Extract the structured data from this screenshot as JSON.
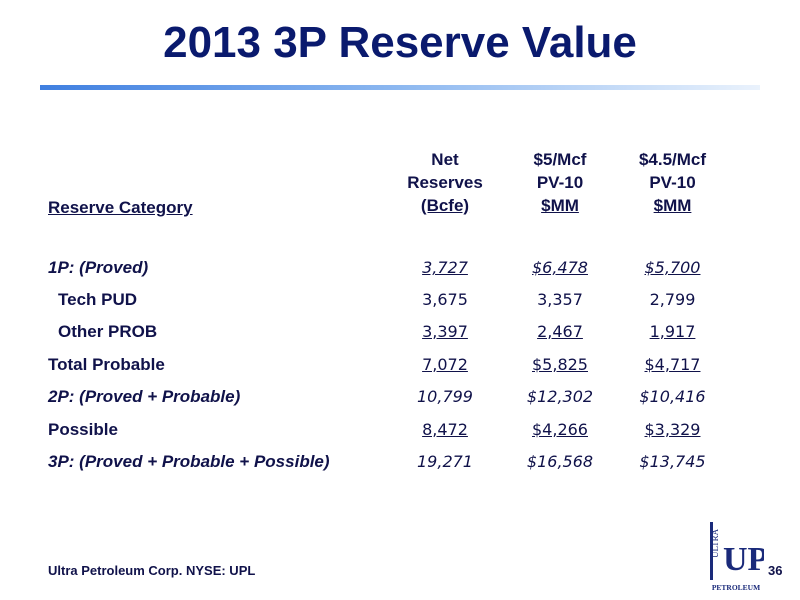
{
  "title": "2013 3P Reserve Value",
  "table": {
    "headers": {
      "category": "Reserve Category",
      "col1": [
        "Net",
        "Reserves",
        "(Bcfe)"
      ],
      "col2": [
        "$5/Mcf",
        "PV-10",
        "$MM"
      ],
      "col3": [
        "$4.5/Mcf",
        "PV-10",
        "$MM"
      ]
    },
    "rows": [
      {
        "category": "1P: (Proved)",
        "values": [
          "3,727",
          "$6,478",
          "$5,700"
        ]
      },
      {
        "category": "Tech PUD",
        "values": [
          "3,675",
          "3,357",
          "2,799"
        ]
      },
      {
        "category": "Other PROB",
        "values": [
          "3,397",
          "2,467",
          "1,917"
        ]
      },
      {
        "category": "Total Probable",
        "values": [
          "7,072",
          "$5,825",
          "$4,717"
        ]
      },
      {
        "category": "2P:  (Proved + Probable)",
        "values": [
          "10,799",
          "$12,302",
          "$10,416"
        ]
      },
      {
        "category": "Possible",
        "values": [
          "8,472",
          "$4,266",
          "$3,329"
        ]
      },
      {
        "category": "3P:  (Proved + Probable + Possible)",
        "values": [
          "19,271",
          "$16,568",
          "$13,745"
        ]
      }
    ]
  },
  "footer": {
    "company": "Ultra Petroleum Corp. NYSE: UPL",
    "page": "36"
  },
  "logo": {
    "side_text": "ULTRA",
    "letters": "UP",
    "bottom_text": "PETROLEUM"
  },
  "colors": {
    "title": "#0a1a6e",
    "text": "#10124a",
    "accent_bar": "#3f7fe0"
  }
}
